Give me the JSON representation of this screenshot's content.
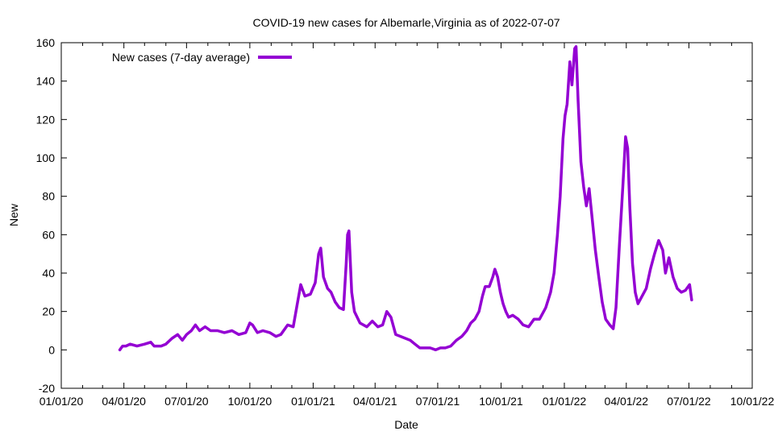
{
  "chart_data": {
    "type": "line",
    "title": "COVID-19 new cases for Albemarle,Virginia as of 2022-07-07",
    "xlabel": "Date",
    "ylabel": "New",
    "xlim": [
      "2020-01-01",
      "2022-10-01"
    ],
    "ylim": [
      -20,
      160
    ],
    "x_ticks": [
      "01/01/20",
      "04/01/20",
      "07/01/20",
      "10/01/20",
      "01/01/21",
      "04/01/21",
      "07/01/21",
      "10/01/21",
      "01/01/22",
      "04/01/22",
      "07/01/22",
      "10/01/22"
    ],
    "x_tick_dates": [
      "2020-01-01",
      "2020-04-01",
      "2020-07-01",
      "2020-10-01",
      "2021-01-01",
      "2021-04-01",
      "2021-07-01",
      "2021-10-01",
      "2022-01-01",
      "2022-04-01",
      "2022-07-01",
      "2022-10-01"
    ],
    "y_ticks": [
      -20,
      0,
      20,
      40,
      60,
      80,
      100,
      120,
      140,
      160
    ],
    "grid": false,
    "legend_position": "top-left",
    "series": [
      {
        "name": "New cases (7-day average)",
        "color": "#9400d3",
        "points": [
          [
            "2020-03-26",
            0
          ],
          [
            "2020-03-30",
            2
          ],
          [
            "2020-04-04",
            2
          ],
          [
            "2020-04-10",
            3
          ],
          [
            "2020-04-20",
            2
          ],
          [
            "2020-05-01",
            3
          ],
          [
            "2020-05-10",
            4
          ],
          [
            "2020-05-15",
            2
          ],
          [
            "2020-05-25",
            2
          ],
          [
            "2020-06-01",
            3
          ],
          [
            "2020-06-10",
            6
          ],
          [
            "2020-06-18",
            8
          ],
          [
            "2020-06-25",
            5
          ],
          [
            "2020-07-01",
            8
          ],
          [
            "2020-07-08",
            10
          ],
          [
            "2020-07-14",
            13
          ],
          [
            "2020-07-20",
            10
          ],
          [
            "2020-07-28",
            12
          ],
          [
            "2020-08-05",
            10
          ],
          [
            "2020-08-15",
            10
          ],
          [
            "2020-08-25",
            9
          ],
          [
            "2020-09-05",
            10
          ],
          [
            "2020-09-15",
            8
          ],
          [
            "2020-09-25",
            9
          ],
          [
            "2020-10-01",
            14
          ],
          [
            "2020-10-05",
            13
          ],
          [
            "2020-10-12",
            9
          ],
          [
            "2020-10-20",
            10
          ],
          [
            "2020-10-30",
            9
          ],
          [
            "2020-11-08",
            7
          ],
          [
            "2020-11-15",
            8
          ],
          [
            "2020-11-25",
            13
          ],
          [
            "2020-12-03",
            12
          ],
          [
            "2020-12-08",
            22
          ],
          [
            "2020-12-14",
            34
          ],
          [
            "2020-12-20",
            28
          ],
          [
            "2020-12-28",
            29
          ],
          [
            "2021-01-04",
            35
          ],
          [
            "2021-01-09",
            50
          ],
          [
            "2021-01-12",
            53
          ],
          [
            "2021-01-16",
            38
          ],
          [
            "2021-01-22",
            32
          ],
          [
            "2021-01-27",
            30
          ],
          [
            "2021-02-02",
            25
          ],
          [
            "2021-02-08",
            22
          ],
          [
            "2021-02-14",
            21
          ],
          [
            "2021-02-18",
            45
          ],
          [
            "2021-02-20",
            60
          ],
          [
            "2021-02-22",
            62
          ],
          [
            "2021-02-26",
            30
          ],
          [
            "2021-03-02",
            20
          ],
          [
            "2021-03-10",
            14
          ],
          [
            "2021-03-20",
            12
          ],
          [
            "2021-03-28",
            15
          ],
          [
            "2021-04-05",
            12
          ],
          [
            "2021-04-12",
            13
          ],
          [
            "2021-04-18",
            20
          ],
          [
            "2021-04-24",
            17
          ],
          [
            "2021-05-01",
            8
          ],
          [
            "2021-05-08",
            7
          ],
          [
            "2021-05-15",
            6
          ],
          [
            "2021-05-22",
            5
          ],
          [
            "2021-05-29",
            3
          ],
          [
            "2021-06-05",
            1
          ],
          [
            "2021-06-12",
            1
          ],
          [
            "2021-06-20",
            1
          ],
          [
            "2021-06-28",
            0
          ],
          [
            "2021-07-05",
            1
          ],
          [
            "2021-07-12",
            1
          ],
          [
            "2021-07-20",
            2
          ],
          [
            "2021-07-28",
            5
          ],
          [
            "2021-08-05",
            7
          ],
          [
            "2021-08-12",
            10
          ],
          [
            "2021-08-18",
            14
          ],
          [
            "2021-08-24",
            16
          ],
          [
            "2021-08-30",
            20
          ],
          [
            "2021-09-04",
            28
          ],
          [
            "2021-09-08",
            33
          ],
          [
            "2021-09-14",
            33
          ],
          [
            "2021-09-19",
            38
          ],
          [
            "2021-09-22",
            42
          ],
          [
            "2021-09-26",
            38
          ],
          [
            "2021-09-30",
            30
          ],
          [
            "2021-10-04",
            24
          ],
          [
            "2021-10-08",
            20
          ],
          [
            "2021-10-12",
            17
          ],
          [
            "2021-10-18",
            18
          ],
          [
            "2021-10-26",
            16
          ],
          [
            "2021-11-02",
            13
          ],
          [
            "2021-11-10",
            12
          ],
          [
            "2021-11-18",
            16
          ],
          [
            "2021-11-26",
            16
          ],
          [
            "2021-12-05",
            22
          ],
          [
            "2021-12-12",
            30
          ],
          [
            "2021-12-17",
            40
          ],
          [
            "2021-12-22",
            60
          ],
          [
            "2021-12-26",
            80
          ],
          [
            "2021-12-30",
            110
          ],
          [
            "2022-01-02",
            122
          ],
          [
            "2022-01-05",
            128
          ],
          [
            "2022-01-09",
            150
          ],
          [
            "2022-01-12",
            138
          ],
          [
            "2022-01-16",
            157
          ],
          [
            "2022-01-18",
            158
          ],
          [
            "2022-01-21",
            130
          ],
          [
            "2022-01-25",
            98
          ],
          [
            "2022-01-29",
            85
          ],
          [
            "2022-02-02",
            75
          ],
          [
            "2022-02-06",
            84
          ],
          [
            "2022-02-10",
            70
          ],
          [
            "2022-02-15",
            52
          ],
          [
            "2022-02-20",
            38
          ],
          [
            "2022-02-25",
            25
          ],
          [
            "2022-03-02",
            16
          ],
          [
            "2022-03-08",
            13
          ],
          [
            "2022-03-13",
            11
          ],
          [
            "2022-03-17",
            22
          ],
          [
            "2022-03-22",
            55
          ],
          [
            "2022-03-27",
            85
          ],
          [
            "2022-03-31",
            111
          ],
          [
            "2022-04-03",
            105
          ],
          [
            "2022-04-06",
            75
          ],
          [
            "2022-04-10",
            45
          ],
          [
            "2022-04-14",
            30
          ],
          [
            "2022-04-18",
            24
          ],
          [
            "2022-04-24",
            28
          ],
          [
            "2022-04-30",
            32
          ],
          [
            "2022-05-06",
            42
          ],
          [
            "2022-05-12",
            50
          ],
          [
            "2022-05-18",
            57
          ],
          [
            "2022-05-24",
            52
          ],
          [
            "2022-05-28",
            40
          ],
          [
            "2022-06-02",
            48
          ],
          [
            "2022-06-08",
            38
          ],
          [
            "2022-06-14",
            32
          ],
          [
            "2022-06-20",
            30
          ],
          [
            "2022-06-26",
            31
          ],
          [
            "2022-07-02",
            34
          ],
          [
            "2022-07-05",
            26
          ]
        ]
      }
    ]
  }
}
